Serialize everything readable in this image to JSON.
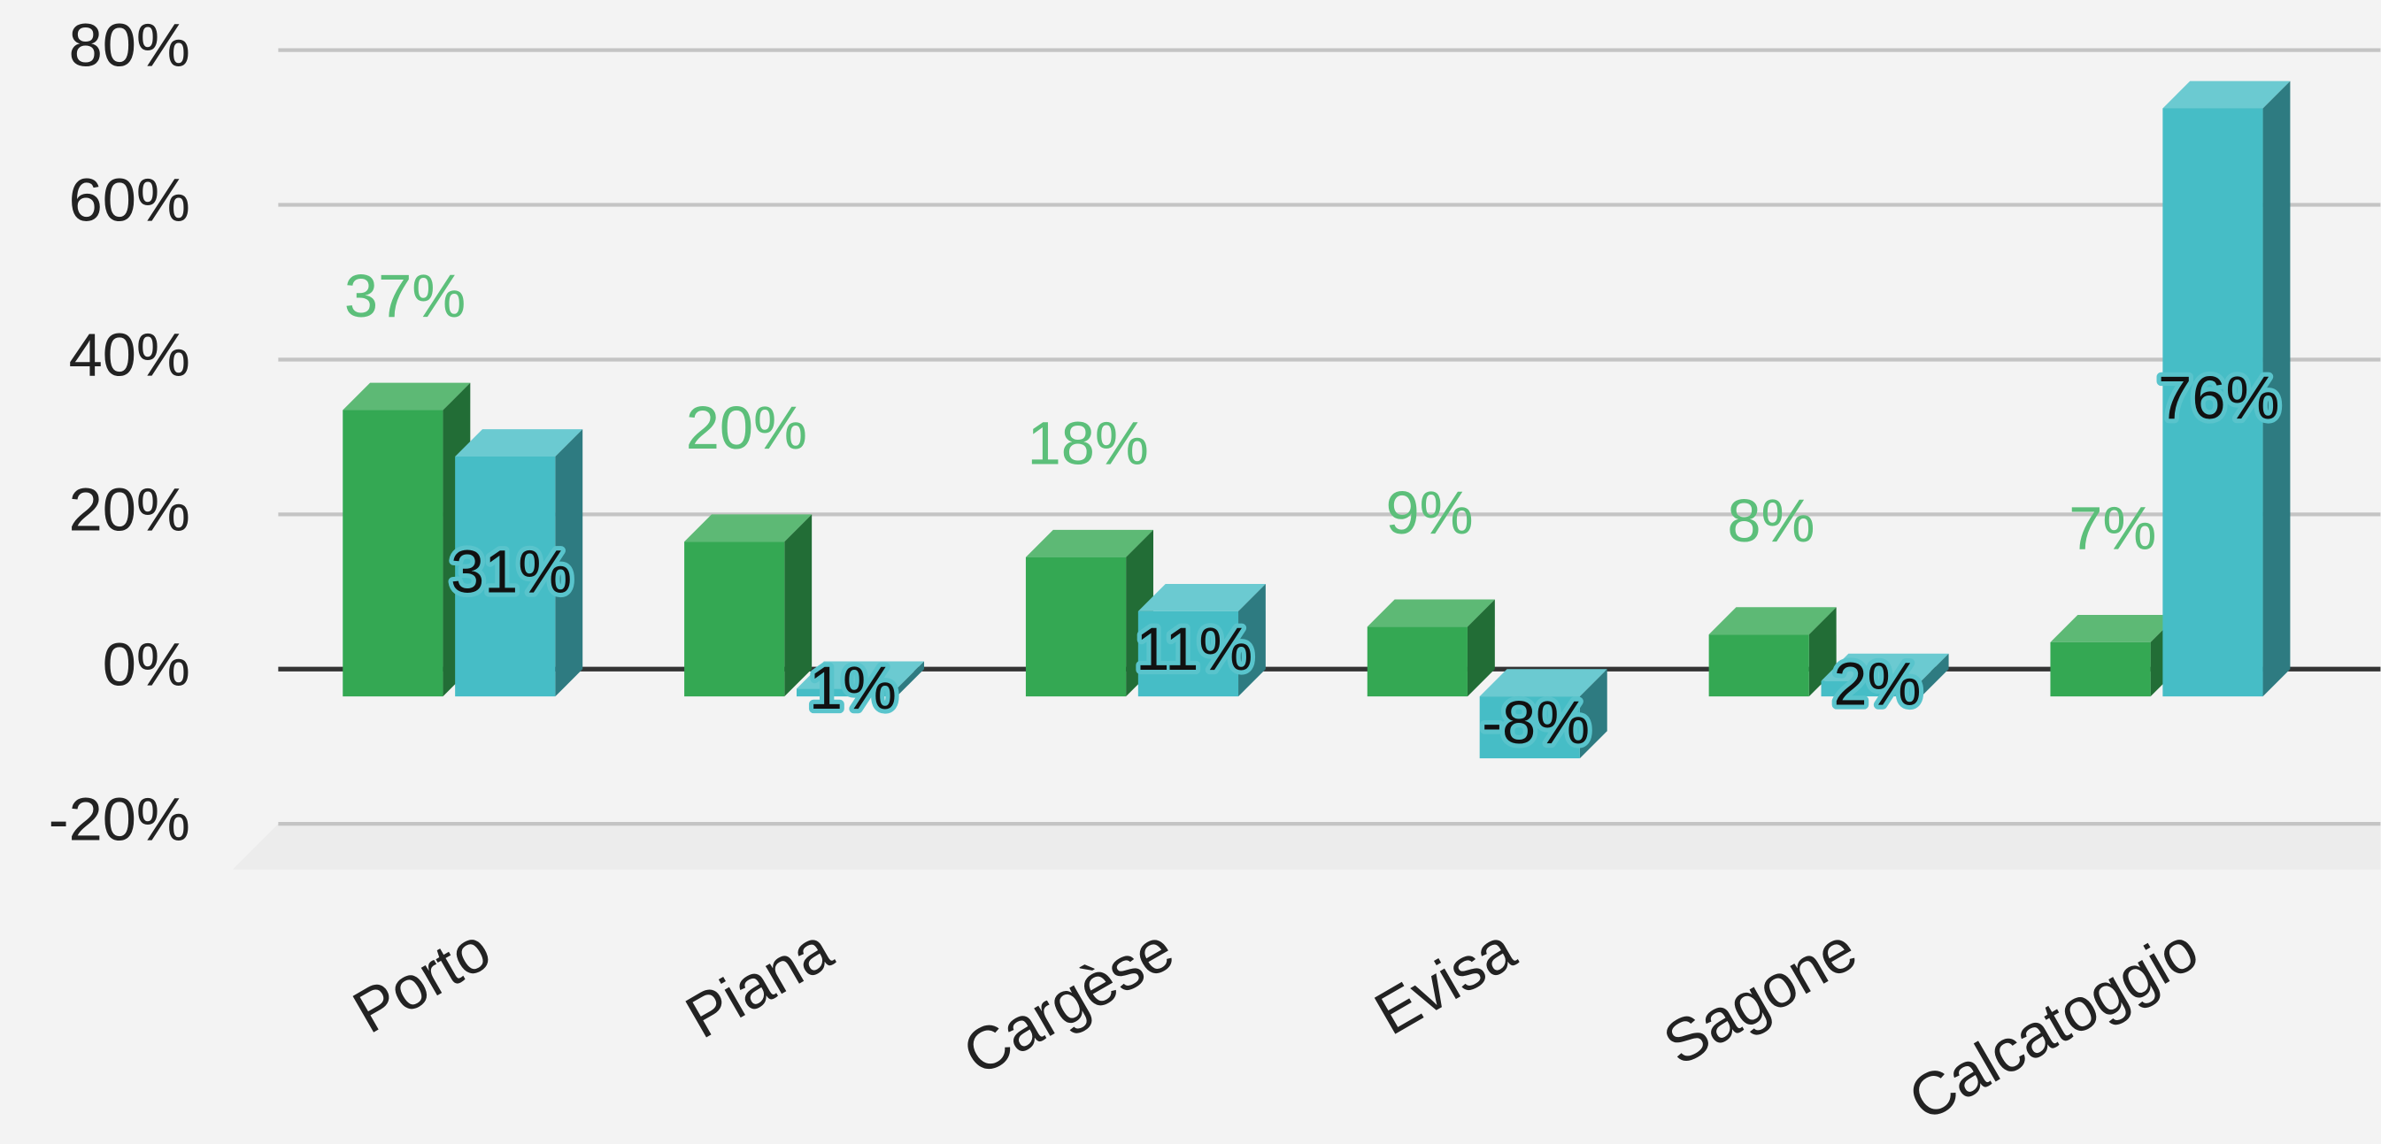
{
  "chart_data": {
    "type": "bar3d",
    "categories": [
      "Porto",
      "Piana",
      "Cargèse",
      "Evisa",
      "Sagone",
      "Calcatoggio"
    ],
    "series": [
      {
        "color": "#34a853",
        "label_color": "#5cbf7a",
        "values": [
          37,
          20,
          18,
          9,
          8,
          7
        ],
        "value_labels": [
          "37%",
          "20%",
          "18%",
          "9%",
          "8%",
          "7%"
        ]
      },
      {
        "color": "#46bdc6",
        "label_color": "#111111",
        "values": [
          31,
          1,
          11,
          -8,
          2,
          76
        ],
        "value_labels": [
          "31%",
          "1%",
          "11%",
          "-8%",
          "2%",
          "76%"
        ]
      }
    ],
    "ylim": [
      -20,
      80
    ],
    "yticks": [
      {
        "value": -20,
        "label": "-20%"
      },
      {
        "value": 0,
        "label": "0%"
      },
      {
        "value": 20,
        "label": "20%"
      },
      {
        "value": 40,
        "label": "40%"
      },
      {
        "value": 60,
        "label": "60%"
      },
      {
        "value": 80,
        "label": "80%"
      }
    ],
    "grid": true
  }
}
